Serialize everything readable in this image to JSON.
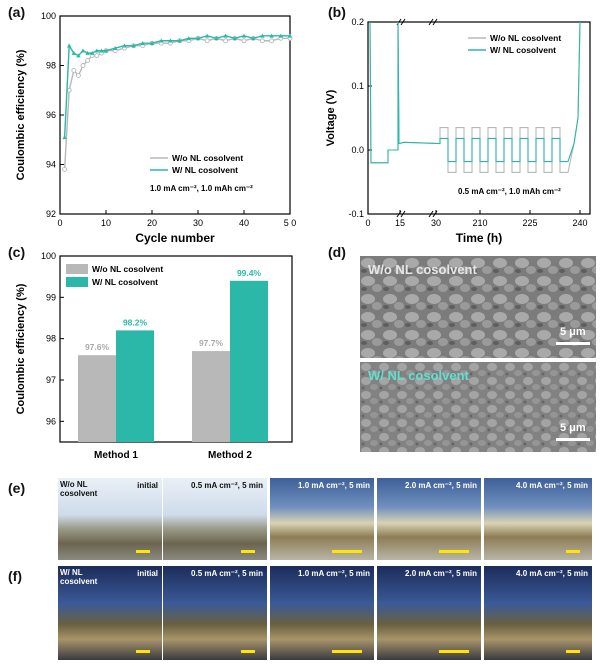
{
  "panels": {
    "a": "(a)",
    "b": "(b)",
    "c": "(c)",
    "d": "(d)",
    "e": "(e)",
    "f": "(f)"
  },
  "colors": {
    "without": "#b8b8b8",
    "with": "#2bb8a8"
  },
  "chart_data": [
    {
      "id": "a",
      "type": "line",
      "xlabel": "Cycle number",
      "ylabel": "Coulombic efficiency (%)",
      "xlim": [
        0,
        50
      ],
      "ylim": [
        92,
        100
      ],
      "xticks": [
        0,
        10,
        20,
        30,
        40,
        50
      ],
      "xtick_labels": [
        "0",
        "10",
        "20",
        "30",
        "40",
        "5 0"
      ],
      "yticks": [
        92,
        94,
        96,
        98,
        100
      ],
      "annotation": "1.0 mA cm⁻², 1.0 mAh cm⁻²",
      "legend": [
        "W/o NL cosolvent",
        "W/ NL cosolvent"
      ],
      "series": [
        {
          "name": "W/o NL cosolvent",
          "x": [
            1,
            2,
            3,
            4,
            5,
            6,
            7,
            8,
            9,
            10,
            12,
            14,
            16,
            18,
            20,
            22,
            24,
            26,
            28,
            30,
            32,
            34,
            36,
            38,
            40,
            42,
            44,
            46,
            48,
            50
          ],
          "values": [
            93.8,
            97.0,
            97.8,
            97.6,
            98.0,
            98.2,
            98.4,
            98.4,
            98.5,
            98.6,
            98.6,
            98.7,
            98.8,
            98.8,
            98.9,
            98.9,
            98.9,
            99.0,
            99.0,
            99.1,
            99.0,
            99.1,
            99.0,
            99.1,
            99.0,
            99.1,
            99.0,
            99.0,
            99.1,
            99.1
          ]
        },
        {
          "name": "W/ NL cosolvent",
          "x": [
            1,
            2,
            3,
            4,
            5,
            6,
            7,
            8,
            9,
            10,
            12,
            14,
            16,
            18,
            20,
            22,
            24,
            26,
            28,
            30,
            32,
            34,
            36,
            38,
            40,
            42,
            44,
            46,
            48,
            50
          ],
          "values": [
            95.1,
            98.8,
            98.5,
            98.4,
            98.6,
            98.5,
            98.5,
            98.6,
            98.6,
            98.6,
            98.7,
            98.8,
            98.8,
            98.9,
            98.9,
            99.0,
            99.0,
            99.0,
            99.1,
            99.1,
            99.2,
            99.1,
            99.2,
            99.1,
            99.2,
            99.1,
            99.2,
            99.2,
            99.2,
            99.2
          ]
        }
      ]
    },
    {
      "id": "b",
      "type": "line",
      "xlabel": "Time (h)",
      "ylabel": "Voltage (V)",
      "ylim": [
        -0.1,
        0.2
      ],
      "yticks": [
        -0.1,
        0.0,
        0.1,
        0.2
      ],
      "ytick_labels": [
        "-0.1",
        "0.0",
        "0.1",
        "0.2"
      ],
      "xtick_labels": [
        "0",
        "15",
        "30",
        "210",
        "225",
        "240"
      ],
      "axis_break": "between 15 and 30, and near 240",
      "annotation": "0.5 mA cm⁻², 1.0 mAh cm⁻²",
      "legend": [
        "W/o NL cosolvent",
        "W/ NL cosolvent"
      ]
    },
    {
      "id": "c",
      "type": "bar",
      "ylabel": "Coulombic efficiency (%)",
      "ylim": [
        95.5,
        100
      ],
      "yticks": [
        96,
        97,
        98,
        99,
        100
      ],
      "categories": [
        "Method 1",
        "Method 2"
      ],
      "legend": [
        "W/o NL cosolvent",
        "W/ NL cosolvent"
      ],
      "series": [
        {
          "name": "W/o NL cosolvent",
          "values": [
            97.6,
            97.7
          ],
          "labels": [
            "97.6%",
            "97.7%"
          ]
        },
        {
          "name": "W/ NL cosolvent",
          "values": [
            98.2,
            99.4
          ],
          "labels": [
            "98.2%",
            "99.4%"
          ]
        }
      ]
    }
  ],
  "sem": {
    "top_label": "W/o NL cosolvent",
    "bottom_label": "W/ NL cosolvent",
    "scale": "5 μm"
  },
  "optical": {
    "row_e_label": "W/o NL cosolvent",
    "row_f_label": "W/ NL cosolvent",
    "captions": [
      "initial",
      "0.5 mA cm⁻², 5 min",
      "1.0 mA cm⁻², 5 min",
      "2.0 mA cm⁻², 5 min",
      "4.0 mA cm⁻², 5 min"
    ]
  }
}
